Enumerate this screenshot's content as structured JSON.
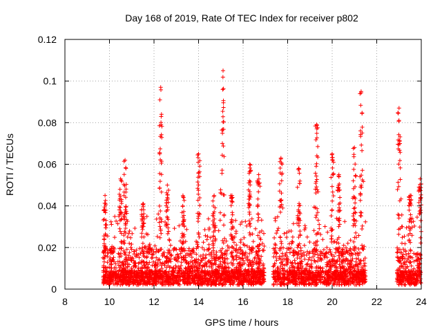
{
  "chart_data": {
    "type": "scatter",
    "title": "Day 168 of 2019, Rate Of TEC Index for receiver p802",
    "xlabel": "GPS time / hours",
    "ylabel": "ROTI / TECUs",
    "xlim": [
      8,
      24
    ],
    "ylim": [
      0,
      0.12
    ],
    "xticks": [
      8,
      10,
      12,
      14,
      16,
      18,
      20,
      22,
      24
    ],
    "yticks": [
      0,
      0.02,
      0.04,
      0.06,
      0.08,
      0.1,
      0.12
    ],
    "xtick_labels": [
      "8",
      "10",
      "12",
      "14",
      "16",
      "18",
      "20",
      "22",
      "24"
    ],
    "ytick_labels": [
      "0",
      "0.02",
      "0.04",
      "0.06",
      "0.08",
      "0.1",
      "0.12"
    ],
    "grid": true,
    "marker": "+",
    "color": "#ff0000",
    "segments": [
      {
        "start": 9.7,
        "end": 16.95,
        "typical_max": 0.035
      },
      {
        "start": 17.35,
        "end": 21.5,
        "typical_max": 0.035
      },
      {
        "start": 22.9,
        "end": 24.0,
        "typical_max": 0.035
      }
    ],
    "peaks": [
      {
        "x": 9.8,
        "y": 0.045
      },
      {
        "x": 10.5,
        "y": 0.053
      },
      {
        "x": 10.7,
        "y": 0.062
      },
      {
        "x": 11.5,
        "y": 0.041
      },
      {
        "x": 12.3,
        "y": 0.097
      },
      {
        "x": 12.6,
        "y": 0.05
      },
      {
        "x": 13.3,
        "y": 0.045
      },
      {
        "x": 14.0,
        "y": 0.065
      },
      {
        "x": 14.7,
        "y": 0.045
      },
      {
        "x": 15.1,
        "y": 0.105
      },
      {
        "x": 15.5,
        "y": 0.045
      },
      {
        "x": 16.3,
        "y": 0.06
      },
      {
        "x": 16.7,
        "y": 0.055
      },
      {
        "x": 17.7,
        "y": 0.063
      },
      {
        "x": 18.5,
        "y": 0.058
      },
      {
        "x": 19.3,
        "y": 0.079
      },
      {
        "x": 20.0,
        "y": 0.065
      },
      {
        "x": 20.3,
        "y": 0.055
      },
      {
        "x": 21.0,
        "y": 0.068
      },
      {
        "x": 21.3,
        "y": 0.095
      },
      {
        "x": 23.0,
        "y": 0.087
      },
      {
        "x": 23.5,
        "y": 0.045
      },
      {
        "x": 23.95,
        "y": 0.053
      }
    ],
    "gaps": [
      [
        8,
        9.7
      ],
      [
        16.95,
        17.35
      ],
      [
        21.5,
        22.9
      ]
    ]
  }
}
